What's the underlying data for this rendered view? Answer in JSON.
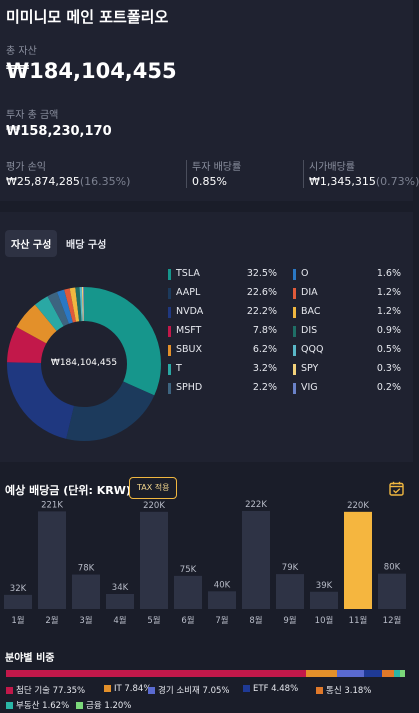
{
  "portfolio": {
    "title": "미미니모 메인 포트폴리오",
    "total_assets_label": "총 자산",
    "total_assets": "₩184,104,455",
    "invested_label": "투자 총 금액",
    "invested": "₩158,230,170",
    "pnl_label": "평가 손익",
    "pnl": "₩25,874,285",
    "pnl_pct": "(16.35%)",
    "yield_label": "투자 배당률",
    "yield": "0.85%",
    "market_yield_label": "시가배당률",
    "market_yield": "₩1,345,315",
    "market_yield_pct": "(0.73%)"
  },
  "composition": {
    "tab_assets": "자산 구성",
    "tab_dividends": "배당 구성",
    "center_label": "₩184,104,455",
    "slices": [
      {
        "name": "TSLA",
        "pct": "32.5%",
        "value": 32.5,
        "color": "#16968c"
      },
      {
        "name": "AAPL",
        "pct": "22.6%",
        "value": 22.6,
        "color": "#1c3a5c"
      },
      {
        "name": "NVDA",
        "pct": "22.2%",
        "value": 22.2,
        "color": "#1f3880"
      },
      {
        "name": "MSFT",
        "pct": "7.8%",
        "value": 7.8,
        "color": "#c2184a"
      },
      {
        "name": "SBUX",
        "pct": "6.2%",
        "value": 6.2,
        "color": "#e3902a"
      },
      {
        "name": "T",
        "pct": "3.2%",
        "value": 3.2,
        "color": "#2aa8a4"
      },
      {
        "name": "SPHD",
        "pct": "2.2%",
        "value": 2.2,
        "color": "#3d6480"
      },
      {
        "name": "O",
        "pct": "1.6%",
        "value": 1.6,
        "color": "#2a78c4"
      },
      {
        "name": "DIA",
        "pct": "1.2%",
        "value": 1.2,
        "color": "#e05a3a"
      },
      {
        "name": "BAC",
        "pct": "1.2%",
        "value": 1.2,
        "color": "#f0b740"
      },
      {
        "name": "DIS",
        "pct": "0.9%",
        "value": 0.9,
        "color": "#1f6e66"
      },
      {
        "name": "QQQ",
        "pct": "0.5%",
        "value": 0.5,
        "color": "#5ab8c8"
      },
      {
        "name": "SPY",
        "pct": "0.3%",
        "value": 0.3,
        "color": "#f3d27a"
      },
      {
        "name": "VIG",
        "pct": "0.2%",
        "value": 0.2,
        "color": "#6a82c8"
      }
    ]
  },
  "dividends": {
    "title": "예상 배당금 (단위: KRW)",
    "tax_button": "TAX 적용",
    "calendar_icon": "calendar-icon",
    "highlight_color": "#f5b63f",
    "bar_color": "#2e3345"
  },
  "chart_data": {
    "type": "bar",
    "categories": [
      "1월",
      "2월",
      "3월",
      "4월",
      "5월",
      "6월",
      "7월",
      "8월",
      "9월",
      "10월",
      "11월",
      "12월"
    ],
    "values": [
      32,
      221,
      78,
      34,
      220,
      75,
      40,
      222,
      79,
      39,
      220,
      80
    ],
    "value_labels": [
      "32K",
      "221K",
      "78K",
      "34K",
      "220K",
      "75K",
      "40K",
      "222K",
      "79K",
      "39K",
      "220K",
      "80K"
    ],
    "highlight_index": 10,
    "title": "예상 배당금 (단위: KRW)"
  },
  "sectors": {
    "title": "분야별 비중",
    "items": [
      {
        "label": "첨단 기술 77.35%",
        "value": 77.35,
        "color": "#c2184a"
      },
      {
        "label": "IT 7.84%",
        "value": 7.84,
        "color": "#e3902a"
      },
      {
        "label": "경기 소비재 7.05%",
        "value": 7.05,
        "color": "#5a6ad0"
      },
      {
        "label": "ETF 4.48%",
        "value": 4.48,
        "color": "#1f3a96"
      },
      {
        "label": "통신 3.18%",
        "value": 3.18,
        "color": "#e0792a"
      },
      {
        "label": "부동산 1.62%",
        "value": 1.62,
        "color": "#2ab6a6"
      },
      {
        "label": "금융 1.20%",
        "value": 1.2,
        "color": "#7bd87a"
      }
    ]
  }
}
